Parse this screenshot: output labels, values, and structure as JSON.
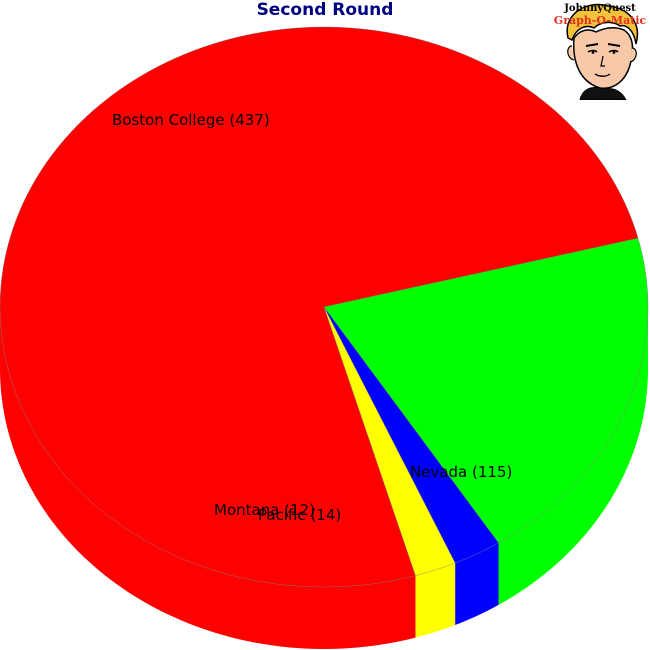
{
  "chart_data": {
    "type": "pie",
    "title": "Second Round",
    "slices": [
      {
        "label": "Boston College",
        "value": 437,
        "color": "#ff0000"
      },
      {
        "label": "Nevada",
        "value": 115,
        "color": "#00ff00"
      },
      {
        "label": "Pacific",
        "value": 14,
        "color": "#0000ff"
      },
      {
        "label": "Montana",
        "value": 12,
        "color": "#ffff00"
      }
    ],
    "legend": "none"
  },
  "logo": {
    "brand_top": "JohnnyQuest",
    "brand_bottom": "Graph-O-Matic"
  }
}
